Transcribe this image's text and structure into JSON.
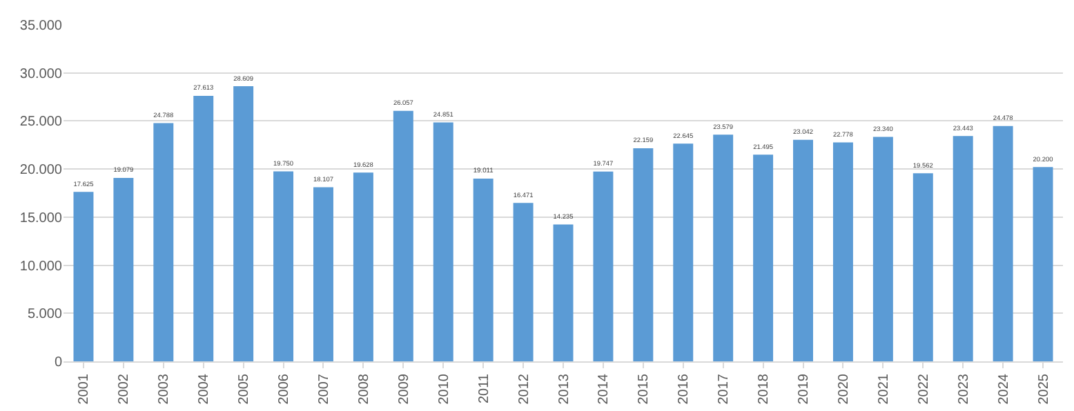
{
  "chart_data": {
    "type": "bar",
    "categories": [
      "2001",
      "2002",
      "2003",
      "2004",
      "2005",
      "2006",
      "2007",
      "2008",
      "2009",
      "2010",
      "2011",
      "2012",
      "2013",
      "2014",
      "2015",
      "2016",
      "2017",
      "2018",
      "2019",
      "2020",
      "2021",
      "2022",
      "2023",
      "2024",
      "2025"
    ],
    "values": [
      17625,
      19079,
      24788,
      27613,
      28609,
      19750,
      18107,
      19628,
      26057,
      24851,
      19011,
      16471,
      14235,
      19747,
      22159,
      22645,
      23579,
      21495,
      23042,
      22778,
      23340,
      19562,
      23443,
      24478,
      20200
    ],
    "value_labels": [
      "17.625",
      "19.079",
      "24.788",
      "27.613",
      "28.609",
      "19.750",
      "18.107",
      "19.628",
      "26.057",
      "24.851",
      "19.011",
      "16.471",
      "14.235",
      "19.747",
      "22.159",
      "22.645",
      "23.579",
      "21.495",
      "23.042",
      "22.778",
      "23.340",
      "19.562",
      "23.443",
      "24.478",
      "20.200"
    ],
    "color": "#5b9bd5",
    "ylim": [
      0,
      35000
    ],
    "yticks": [
      {
        "value": 0,
        "label": "0"
      },
      {
        "value": 5000,
        "label": "5.000"
      },
      {
        "value": 10000,
        "label": "10.000"
      },
      {
        "value": 15000,
        "label": "15.000"
      },
      {
        "value": 20000,
        "label": "20.000"
      },
      {
        "value": 25000,
        "label": "25.000"
      },
      {
        "value": 30000,
        "label": "30.000"
      },
      {
        "value": 35000,
        "label": "35.000"
      }
    ],
    "grid": "y"
  }
}
